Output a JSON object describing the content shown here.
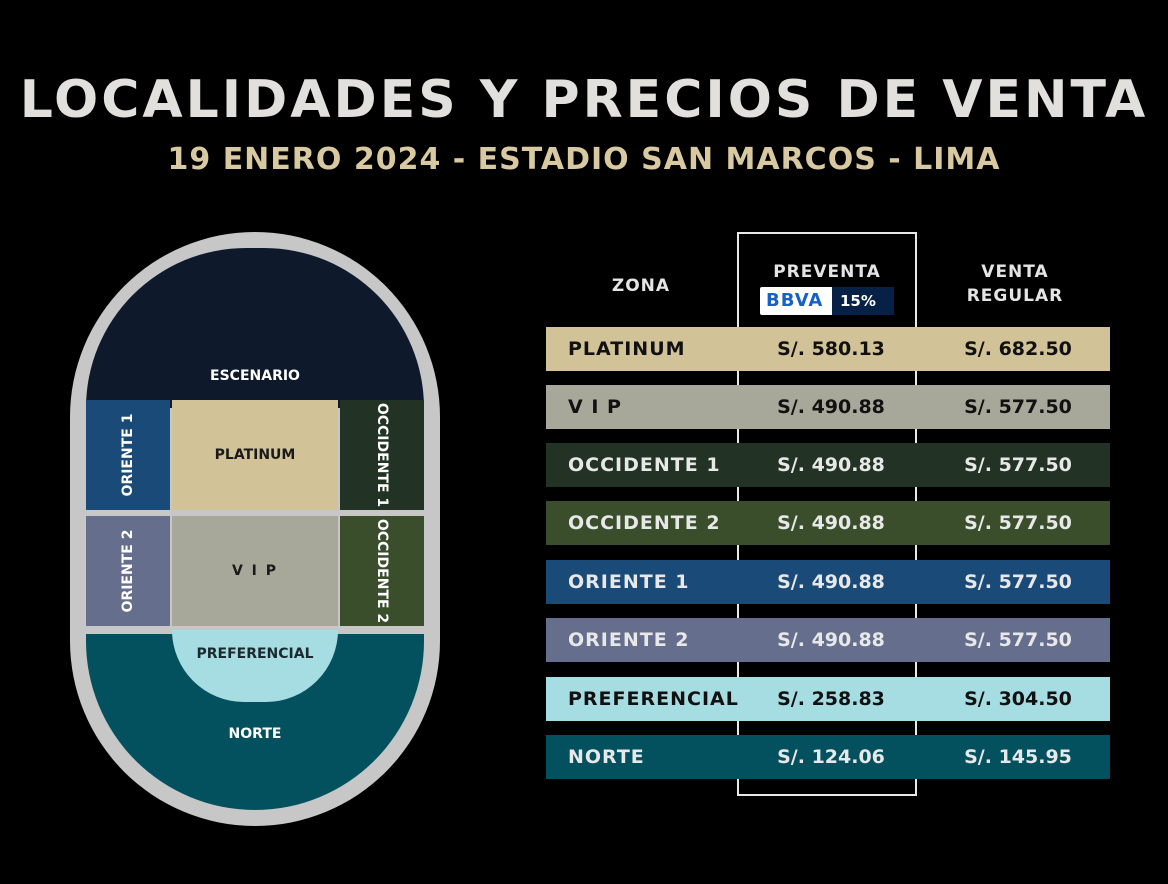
{
  "header": {
    "title": "LOCALIDADES Y PRECIOS DE VENTA",
    "subtitle": "19 ENERO 2024 - ESTADIO SAN MARCOS - LIMA"
  },
  "map": {
    "escenario": "ESCENARIO",
    "oriente1": "ORIENTE 1",
    "platinum": "PLATINUM",
    "occidente1": "OCCIDENTE 1",
    "oriente2": "ORIENTE 2",
    "vip": "V I P",
    "occidente2": "OCCIDENTE 2",
    "preferencial": "PREFERENCIAL",
    "norte": "NORTE"
  },
  "table": {
    "col_zona": "ZONA",
    "col_preventa": "PREVENTA",
    "bbva_brand": "BBVA",
    "bbva_discount": "15%",
    "col_regular": "VENTA REGULAR",
    "rows": [
      {
        "zona": "PLATINUM",
        "preventa": "S/. 580.13",
        "regular": "S/. 682.50",
        "bg": "#d2c298",
        "fg": "#111111"
      },
      {
        "zona": "V I P",
        "preventa": "S/. 490.88",
        "regular": "S/. 577.50",
        "bg": "#a8a89a",
        "fg": "#111111"
      },
      {
        "zona": "OCCIDENTE 1",
        "preventa": "S/. 490.88",
        "regular": "S/. 577.50",
        "bg": "#223224",
        "fg": "#e8e8e8"
      },
      {
        "zona": "OCCIDENTE 2",
        "preventa": "S/. 490.88",
        "regular": "S/. 577.50",
        "bg": "#3a4e2c",
        "fg": "#e8e8e8"
      },
      {
        "zona": "ORIENTE 1",
        "preventa": "S/. 490.88",
        "regular": "S/. 577.50",
        "bg": "#1a4a78",
        "fg": "#e8e8e8"
      },
      {
        "zona": "ORIENTE 2",
        "preventa": "S/. 490.88",
        "regular": "S/. 577.50",
        "bg": "#666e8e",
        "fg": "#e8e8e8"
      },
      {
        "zona": "PREFERENCIAL",
        "preventa": "S/. 258.83",
        "regular": "S/. 304.50",
        "bg": "#a5dde2",
        "fg": "#111111"
      },
      {
        "zona": "NORTE",
        "preventa": "S/. 124.06",
        "regular": "S/. 145.95",
        "bg": "#03505e",
        "fg": "#e8e8e8"
      }
    ]
  }
}
